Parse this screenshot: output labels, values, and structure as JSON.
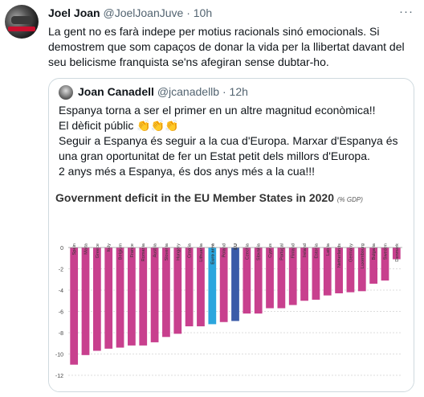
{
  "tweet": {
    "author_name": "Joel Joan",
    "author_handle": "@JoelJoanJuve",
    "separator": "·",
    "time": "10h",
    "more_icon": "more-icon",
    "text": "La gent no es farà indepe per motius racionals sinó emocionals.  Si demostrem que som capaços de donar la vida per la llibertat davant  del seu belicisme franquista se'ns afegiran sense dubtar-ho."
  },
  "quote": {
    "author_name": "Joan Canadell",
    "author_handle": "@jcanadellb",
    "separator": "·",
    "time": "12h",
    "text": "Espanya torna a ser el primer en un altre magnitud econòmica!!\nEl dèficit públic 👏👏👏\nSeguir a Espanya és seguir a la cua d'Europa. Marxar d'Espanya és una gran oportunitat de fer un Estat petit dels millors d'Europa.\n2 anys més a Espanya, és dos anys més a la cua!!!"
  },
  "chart_data": {
    "type": "bar",
    "title": "Government deficit in the EU Member States in 2020",
    "subtitle": "(% GDP)",
    "categories": [
      "Spain",
      "Malta",
      "Greece",
      "Italy",
      "Belgium",
      "France",
      "Romania",
      "Austria",
      "Slovenia",
      "Hungary",
      "Croatia",
      "Lithuania",
      "Euro area",
      "Poland",
      "EU",
      "Czechia",
      "Slovakia",
      "Cyprus",
      "Portugal",
      "Finland",
      "Ireland",
      "Estonia",
      "Latvia",
      "Netherlands",
      "Germany",
      "Luxembourg",
      "Bulgaria",
      "Sweden",
      "Denmark"
    ],
    "values": [
      -11.0,
      -10.1,
      -9.7,
      -9.5,
      -9.4,
      -9.2,
      -9.2,
      -8.9,
      -8.4,
      -8.1,
      -7.4,
      -7.4,
      -7.2,
      -7.0,
      -6.9,
      -6.2,
      -6.2,
      -5.7,
      -5.7,
      -5.4,
      -5.0,
      -4.9,
      -4.5,
      -4.3,
      -4.2,
      -4.1,
      -3.4,
      -3.1,
      -1.1
    ],
    "highlight": {
      "Euro area": "#2ba6de",
      "EU": "#3a5ba8"
    },
    "bar_color": "#c8408e",
    "ylim": [
      -12,
      0
    ],
    "yticks": [
      0,
      -2,
      -4,
      -6,
      -8,
      -10,
      -12
    ],
    "grid": true,
    "xlabel": "",
    "ylabel": ""
  }
}
